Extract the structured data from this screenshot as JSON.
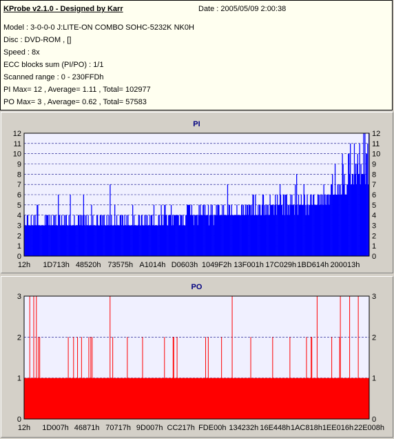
{
  "header": {
    "title": "KProbe v2.1.0 - Designed by Karr",
    "date": "Date : 2005/05/09 2:00:38",
    "lines": [
      "Model : 3-0-0-0 J:LITE-ON COMBO SOHC-5232K NK0H",
      "Disc : DVD-ROM ,  []",
      "Speed : 8x",
      "ECC blocks sum (PI/PO) : 1/1",
      "Scanned range : 0 - 230FFDh",
      "PI Max= 12 , Average= 1.11 , Total= 102977",
      "PO Max= 3 , Average= 0.62 , Total= 57583"
    ]
  },
  "chart_data": [
    {
      "type": "bar",
      "title": "PI",
      "ylim": [
        0,
        12
      ],
      "yticks": [
        0,
        1,
        2,
        3,
        4,
        5,
        6,
        7,
        8,
        9,
        10,
        11,
        12
      ],
      "xticks": [
        "12h",
        "1D713h",
        "48520h",
        "73575h",
        "A1014h",
        "D0603h",
        "1049F2h",
        "13F001h",
        "17C029h",
        "1BD614h",
        "200013h"
      ],
      "x_range": [
        "0h",
        "230FFDh"
      ],
      "color": "#0000ff",
      "baseline_profile": [
        {
          "x_frac": 0.0,
          "value": 3
        },
        {
          "x_frac": 0.35,
          "value": 3
        },
        {
          "x_frac": 0.6,
          "value": 4
        },
        {
          "x_frac": 0.85,
          "value": 5
        },
        {
          "x_frac": 0.9,
          "value": 6
        },
        {
          "x_frac": 1.0,
          "value": 8
        }
      ],
      "max": 12,
      "average": 1.11
    },
    {
      "type": "bar",
      "title": "PO",
      "ylim": [
        0,
        3
      ],
      "yticks": [
        0,
        1,
        2,
        3
      ],
      "xticks": [
        "12h",
        "1D007h",
        "46871h",
        "70717h",
        "9D007h",
        "CC217h",
        "FDE00h",
        "134232h",
        "16E448h",
        "1AC818h",
        "1EE016h",
        "22E008h"
      ],
      "x_range": [
        "0h",
        "230FFDh"
      ],
      "color": "#ff0000",
      "baseline_value": 1,
      "max": 3,
      "average": 0.62
    }
  ],
  "colors": {
    "plot_bg": "#f0f0ff",
    "grid": "#000080",
    "pi_bars": "#0000ff",
    "po_bars": "#ff0000",
    "title": "#000080"
  }
}
